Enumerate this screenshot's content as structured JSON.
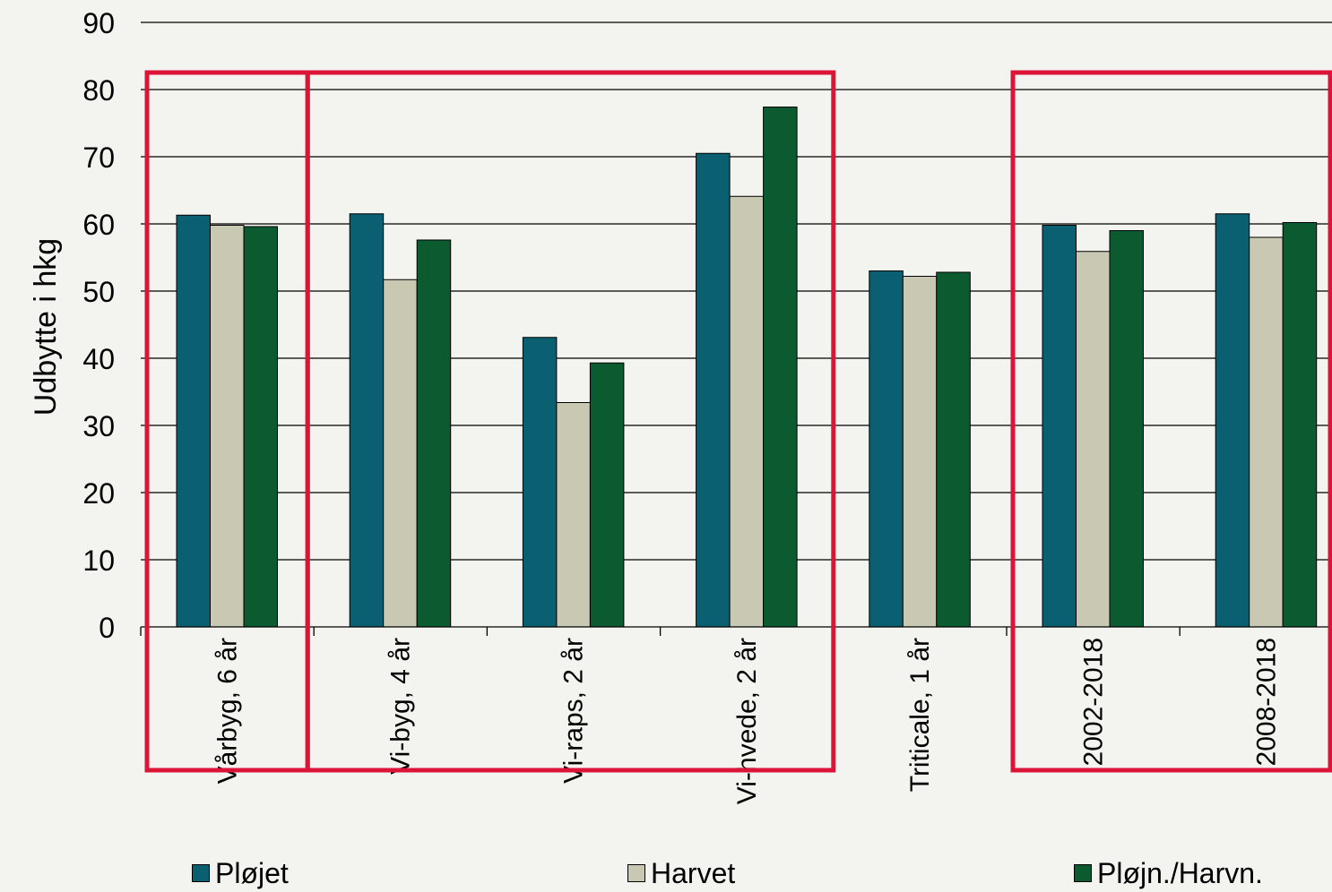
{
  "chart_data": {
    "type": "bar",
    "title": "",
    "xlabel": "",
    "ylabel": "Udbytte i hkg",
    "ylim": [
      0,
      90
    ],
    "yticks": [
      0,
      10,
      20,
      30,
      40,
      50,
      60,
      70,
      80,
      90
    ],
    "grid": true,
    "legend_position": "bottom",
    "categories": [
      "Vårbyg, 6 år",
      "Vi-byg, 4 år",
      "Vi-raps, 2 år",
      "Vi-hvede, 2 år",
      "Triticale, 1 år",
      "2002-2018",
      "2008-2018"
    ],
    "series": [
      {
        "name": "Pløjet",
        "color": "#0a6070",
        "values": [
          61.3,
          61.5,
          43.1,
          70.5,
          53.0,
          59.8,
          61.5
        ]
      },
      {
        "name": "Harvet",
        "color": "#c9c8b3",
        "values": [
          59.8,
          51.7,
          33.4,
          64.1,
          52.2,
          55.9,
          58.0
        ]
      },
      {
        "name": "Pløjn./Harvn.",
        "color": "#0b5a30",
        "values": [
          59.6,
          57.6,
          39.3,
          77.4,
          52.8,
          59.0,
          60.2
        ]
      }
    ],
    "highlight_color": "#dc1438"
  }
}
